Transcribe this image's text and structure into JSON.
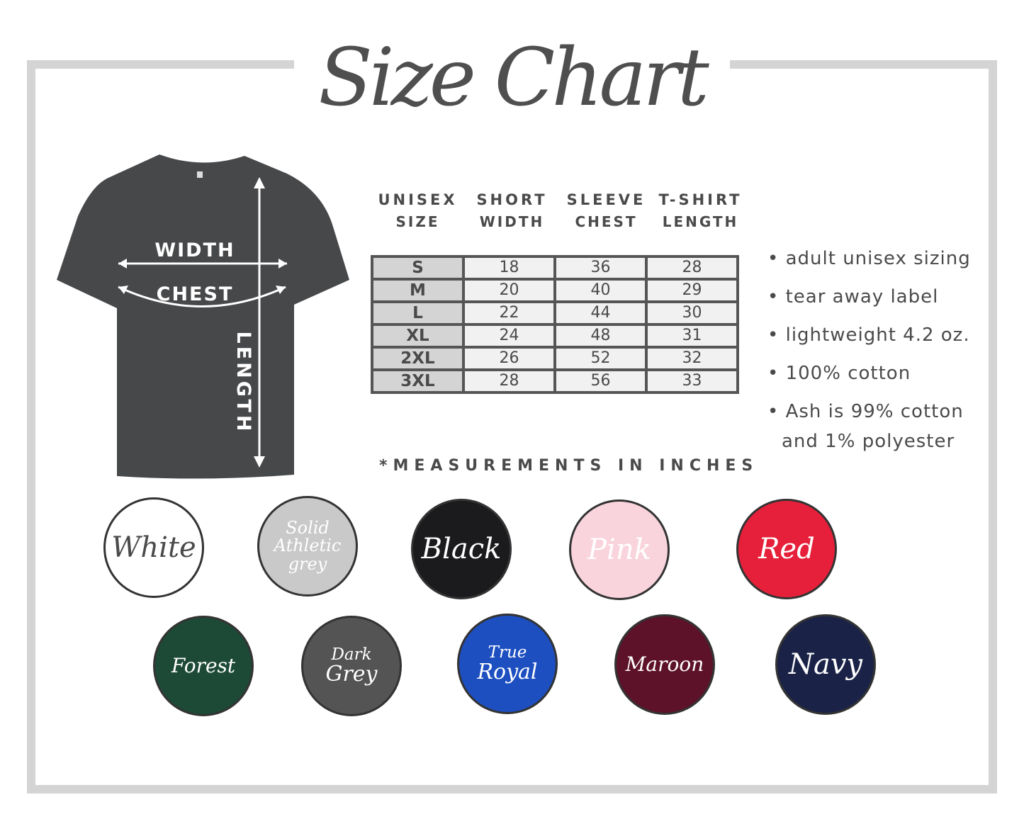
{
  "title": "Size Chart",
  "shirt_labels": {
    "width": "WIDTH",
    "chest": "CHEST",
    "length": "LENGTH"
  },
  "table": {
    "header_line1": [
      "UNISEX",
      "SHORT",
      "SLEEVE",
      "T-SHIRT"
    ],
    "header_line2": [
      "SIZE",
      "WIDTH",
      "CHEST",
      "LENGTH"
    ],
    "rows": [
      [
        "S",
        "18",
        "36",
        "28"
      ],
      [
        "M",
        "20",
        "40",
        "29"
      ],
      [
        "L",
        "22",
        "44",
        "30"
      ],
      [
        "XL",
        "24",
        "48",
        "31"
      ],
      [
        "2XL",
        "26",
        "52",
        "32"
      ],
      [
        "3XL",
        "28",
        "56",
        "33"
      ]
    ]
  },
  "notes": [
    "• adult unisex sizing",
    "• tear away label",
    "• lightweight 4.2 oz.",
    "• 100% cotton",
    "• Ash is 99% cotton",
    "and 1% polyester"
  ],
  "measurements_note": "*MEASUREMENTS IN INCHES",
  "swatches": [
    {
      "label": [
        "White"
      ],
      "color": "#ffffff",
      "text_color": "#4a4a4a"
    },
    {
      "label": [
        "Solid",
        "Athletic",
        "grey"
      ],
      "color": "#c9c9c9",
      "text_color": "#ffffff"
    },
    {
      "label": [
        "Black"
      ],
      "color": "#1b1b1d",
      "text_color": "#ffffff"
    },
    {
      "label": [
        "Pink"
      ],
      "color": "#f9d4dd",
      "text_color": "#ffffff"
    },
    {
      "label": [
        "Red"
      ],
      "color": "#e6203a",
      "text_color": "#ffffff"
    },
    {
      "label": [
        "Forest"
      ],
      "color": "#1d4a37",
      "text_color": "#ffffff"
    },
    {
      "label": [
        "Dark",
        "Grey"
      ],
      "color": "#545454",
      "text_color": "#ffffff"
    },
    {
      "label": [
        "True",
        "Royal"
      ],
      "color": "#1d4fc1",
      "text_color": "#ffffff"
    },
    {
      "label": [
        "Maroon"
      ],
      "color": "#5d1229",
      "text_color": "#ffffff"
    },
    {
      "label": [
        "Navy"
      ],
      "color": "#1a2347",
      "text_color": "#ffffff"
    }
  ],
  "colors": {
    "frame": "#d4d4d4",
    "shirt": "#47484a",
    "text": "#4a4a4a"
  }
}
